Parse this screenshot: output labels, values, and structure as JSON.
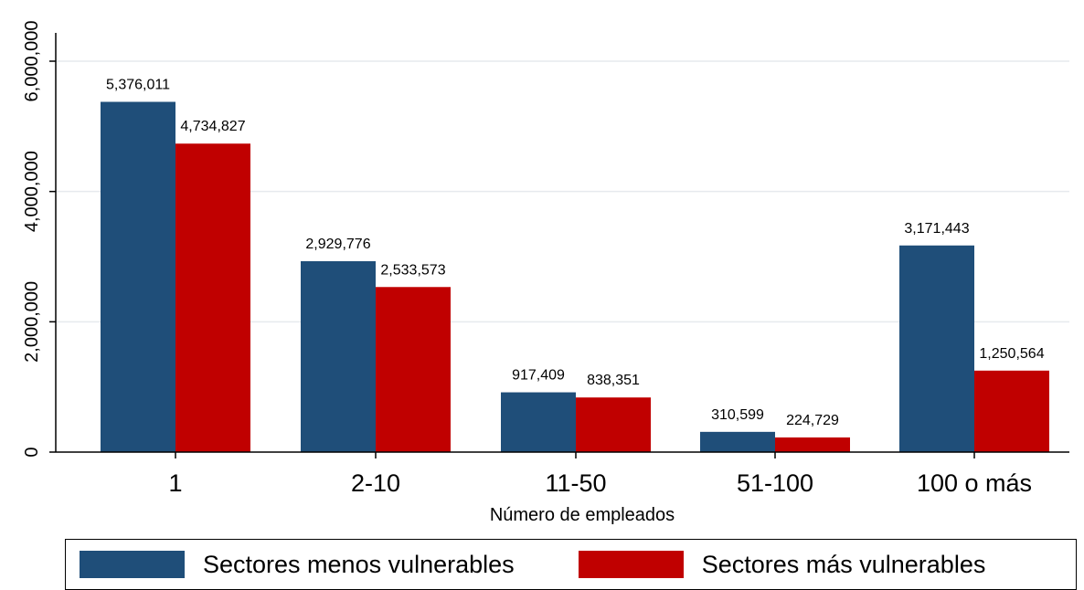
{
  "chart_data": {
    "type": "bar",
    "title": "",
    "xlabel": "Número de empleados",
    "ylabel": "",
    "categories": [
      "1",
      "2-10",
      "11-50",
      "51-100",
      "100 o más"
    ],
    "series": [
      {
        "name": "Sectores menos vulnerables",
        "color": "#1f4e79",
        "values": [
          5376011,
          2929776,
          917409,
          310599,
          3171443
        ],
        "labels": [
          "5,376,011",
          "2,929,776",
          "917,409",
          "310,599",
          "3,171,443"
        ]
      },
      {
        "name": "Sectores más vulnerables",
        "color": "#c00000",
        "values": [
          4734827,
          2533573,
          838351,
          224729,
          1250564
        ],
        "labels": [
          "4,734,827",
          "2,533,573",
          "838,351",
          "224,729",
          "1,250,564"
        ]
      }
    ],
    "ylim": [
      0,
      6000000
    ],
    "yticks": [
      0,
      2000000,
      4000000,
      6000000
    ],
    "ytick_labels": [
      "0",
      "2,000,000",
      "4,000,000",
      "6,000,000"
    ],
    "grid": true,
    "legend_position": "bottom"
  }
}
